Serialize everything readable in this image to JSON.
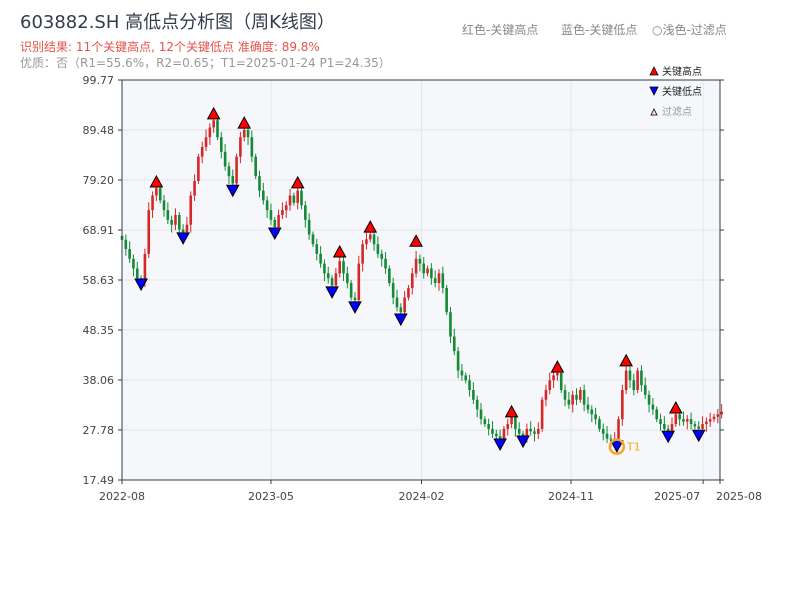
{
  "title": "603882.SH 高低点分析图（周K线图）",
  "subtitle_result": "识别结果: 11个关键高点, 12个关键低点  准确度: 89.8%",
  "subtitle_quality": "优质：否（R1=55.6%，R2=0.65；T1=2025-01-24 P1=24.35）",
  "top_legend": {
    "red": "红色-关键高点",
    "blue": "蓝色-关键低点",
    "light": "○浅色-过滤点"
  },
  "colors": {
    "up": "#d62728",
    "down": "#138a36",
    "high_marker": "#ff0000",
    "low_marker": "#0000ff",
    "t1": "#f5a623",
    "plot_bg": "#f5f7fa"
  },
  "chart_data": {
    "type": "candlestick",
    "title": "603882.SH 高低点分析图（周K线图）",
    "ylim": [
      17.49,
      99.77
    ],
    "y_ticks": [
      "17.49",
      "27.78",
      "38.06",
      "48.35",
      "58.63",
      "68.91",
      "79.20",
      "89.48",
      "99.77"
    ],
    "x_ticks": [
      "2022-08",
      "2023-05",
      "2024-02",
      "2024-11",
      "2025-07",
      "2025-08"
    ],
    "x_range": [
      "2022-08-01",
      "2025-08-01"
    ],
    "grid": true,
    "candles": {
      "start": "2022-08-01",
      "freq": "weekly",
      "closes": [
        66.9,
        65,
        63,
        61,
        59,
        58.5,
        64,
        73,
        76,
        77.5,
        75,
        73,
        71,
        70,
        72,
        69,
        68.5,
        70,
        76,
        79,
        84,
        86,
        88,
        90,
        91.5,
        88,
        85,
        82,
        80,
        78.5,
        84,
        88,
        89.5,
        88,
        84,
        80,
        77,
        75,
        73,
        71,
        69.5,
        72,
        73,
        74,
        76,
        74.5,
        77,
        74,
        71,
        68,
        66,
        64,
        62,
        60,
        59,
        57.5,
        60,
        62.5,
        60,
        58,
        55,
        54.5,
        62,
        66,
        67,
        68,
        66,
        64,
        63,
        61,
        58,
        55,
        53,
        52,
        55,
        57,
        60,
        63,
        62,
        60,
        61,
        59,
        58,
        60,
        57,
        52,
        47,
        44,
        40,
        39,
        38,
        36,
        34,
        32,
        30,
        29,
        28,
        27,
        26.5,
        26,
        28,
        29,
        30.5,
        28,
        27,
        26.5,
        28,
        27.5,
        27,
        28,
        34,
        36,
        38,
        39,
        39.5,
        36,
        34,
        33,
        35,
        34,
        36,
        33,
        32,
        31,
        30,
        28,
        27,
        26,
        25.8,
        26,
        30,
        36,
        40,
        38,
        36,
        40,
        37,
        35,
        33,
        32,
        30,
        29,
        28,
        27.5,
        29,
        31,
        30,
        29.5,
        30,
        29,
        28.5,
        28,
        29,
        29.5,
        30,
        30.5,
        31,
        31.5
      ]
    },
    "key_highs": [
      {
        "date": "2022-10-03",
        "price": 78.8
      },
      {
        "date": "2023-01-16",
        "price": 92.8
      },
      {
        "date": "2023-03-13",
        "price": 90.9
      },
      {
        "date": "2023-06-19",
        "price": 78.6
      },
      {
        "date": "2023-09-04",
        "price": 64.4
      },
      {
        "date": "2023-10-30",
        "price": 69.5
      },
      {
        "date": "2024-01-22",
        "price": 66.6
      },
      {
        "date": "2024-07-15",
        "price": 31.5
      },
      {
        "date": "2024-10-07",
        "price": 40.7
      },
      {
        "date": "2025-02-10",
        "price": 42.0
      },
      {
        "date": "2025-05-12",
        "price": 32.3
      }
    ],
    "key_lows": [
      {
        "date": "2022-09-05",
        "price": 57.8
      },
      {
        "date": "2022-11-21",
        "price": 67.3
      },
      {
        "date": "2023-02-20",
        "price": 77.1
      },
      {
        "date": "2023-05-08",
        "price": 68.3
      },
      {
        "date": "2023-08-21",
        "price": 56.2
      },
      {
        "date": "2023-10-02",
        "price": 53.1
      },
      {
        "date": "2023-12-25",
        "price": 50.6
      },
      {
        "date": "2024-06-24",
        "price": 24.9
      },
      {
        "date": "2024-08-05",
        "price": 25.5
      },
      {
        "date": "2025-01-24",
        "price": 24.5
      },
      {
        "date": "2025-04-28",
        "price": 26.5
      },
      {
        "date": "2025-06-23",
        "price": 26.7
      }
    ],
    "t1": {
      "label": "T1",
      "date": "2025-01-24",
      "price": 24.35
    },
    "legend": {
      "placement": "top-right",
      "entries": [
        "关键高点",
        "关键低点",
        "过滤点"
      ]
    }
  }
}
